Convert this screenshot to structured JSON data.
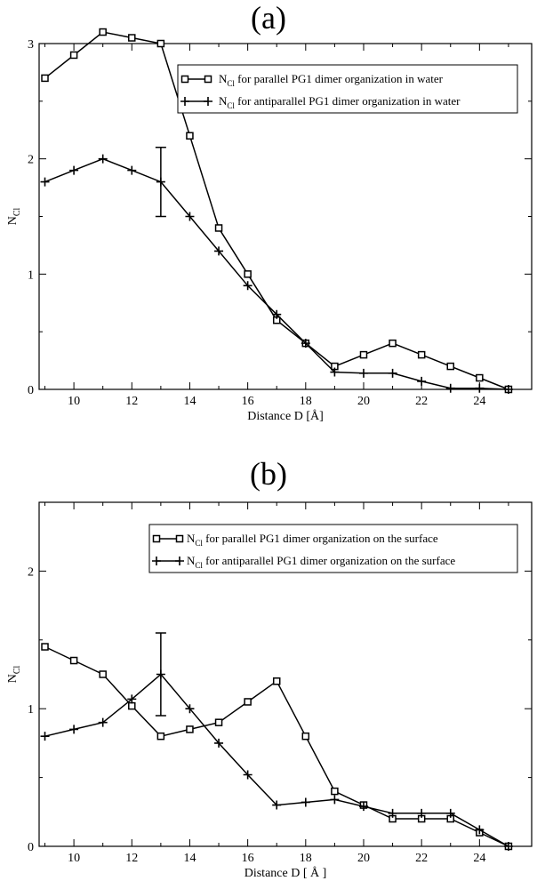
{
  "chart_data": [
    {
      "type": "line",
      "title": "(a)",
      "xlabel": "Distance D [Å]",
      "ylabel_main": "N",
      "ylabel_sub": "Cl",
      "xlim": [
        8.8,
        25.8
      ],
      "ylim": [
        0,
        3.0
      ],
      "xticks": [
        10,
        12,
        14,
        16,
        18,
        20,
        22,
        24
      ],
      "yticks": [
        0,
        1,
        2,
        3
      ],
      "legend_position": "top-right",
      "series": [
        {
          "name_main": "N",
          "name_sub": "Cl",
          "name_rest": "for parallel PG1 dimer organization in water",
          "marker": "square",
          "x": [
            9,
            10,
            11,
            12,
            13,
            14,
            15,
            16,
            17,
            18,
            19,
            20,
            21,
            22,
            23,
            24,
            25
          ],
          "y": [
            2.7,
            2.9,
            3.1,
            3.05,
            3.0,
            2.2,
            1.4,
            1.0,
            0.6,
            0.4,
            0.2,
            0.3,
            0.4,
            0.3,
            0.2,
            0.1,
            0.0
          ]
        },
        {
          "name_main": "N",
          "name_sub": "Cl",
          "name_rest": "for antiparallel PG1 dimer organization in water",
          "marker": "plus",
          "x": [
            9,
            10,
            11,
            12,
            13,
            14,
            15,
            16,
            17,
            18,
            19,
            20,
            21,
            22,
            23,
            24,
            25
          ],
          "y": [
            1.8,
            1.9,
            2.0,
            1.9,
            1.8,
            1.5,
            1.2,
            0.9,
            0.65,
            0.4,
            0.15,
            0.14,
            0.14,
            0.07,
            0.01,
            0.01,
            0.0
          ]
        }
      ],
      "error_bar": {
        "x": 13,
        "low": 1.5,
        "high": 2.1
      }
    },
    {
      "type": "line",
      "title": "(b)",
      "xlabel": "Distance D [ Å ]",
      "ylabel_main": "N",
      "ylabel_sub": "Cl",
      "xlim": [
        8.8,
        25.8
      ],
      "ylim": [
        0,
        2.5
      ],
      "xticks": [
        10,
        12,
        14,
        16,
        18,
        20,
        22,
        24
      ],
      "yticks": [
        0,
        1,
        2
      ],
      "legend_position": "top-right",
      "series": [
        {
          "name_main": "N",
          "name_sub": "Cl",
          "name_rest": "for parallel PG1 dimer organization on the surface",
          "marker": "square",
          "x": [
            9,
            10,
            11,
            12,
            13,
            14,
            15,
            16,
            17,
            18,
            19,
            20,
            21,
            22,
            23,
            24,
            25
          ],
          "y": [
            1.45,
            1.35,
            1.25,
            1.02,
            0.8,
            0.85,
            0.9,
            1.05,
            1.2,
            0.8,
            0.4,
            0.3,
            0.2,
            0.2,
            0.2,
            0.1,
            0.0
          ]
        },
        {
          "name_main": "N",
          "name_sub": "Cl",
          "name_rest": "for antiparallel PG1 dimer organization on the surface",
          "marker": "plus",
          "x": [
            9,
            10,
            11,
            12,
            13,
            14,
            15,
            16,
            17,
            18,
            19,
            20,
            21,
            22,
            23,
            24,
            25
          ],
          "y": [
            0.8,
            0.85,
            0.9,
            1.07,
            1.25,
            1.0,
            0.75,
            0.52,
            0.3,
            0.32,
            0.34,
            0.29,
            0.24,
            0.24,
            0.24,
            0.12,
            0.0
          ]
        }
      ],
      "error_bar": {
        "x": 13,
        "low": 0.95,
        "high": 1.55
      }
    }
  ]
}
